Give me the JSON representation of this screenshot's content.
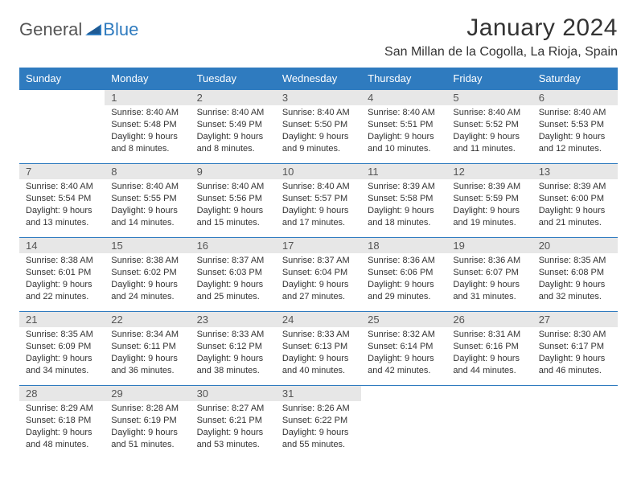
{
  "brand": {
    "part1": "General",
    "part2": "Blue"
  },
  "header": {
    "title": "January 2024",
    "location": "San Millan de la Cogolla, La Rioja, Spain"
  },
  "colors": {
    "header_bg": "#2f7bbf",
    "header_text": "#ffffff",
    "daynum_bg": "#e7e7e7",
    "daynum_text": "#555555",
    "row_border": "#2f7bbf",
    "body_text": "#333333",
    "brand_gray": "#555555",
    "brand_blue": "#2f7bbf"
  },
  "columns": [
    "Sunday",
    "Monday",
    "Tuesday",
    "Wednesday",
    "Thursday",
    "Friday",
    "Saturday"
  ],
  "weeks": [
    [
      {
        "empty": true
      },
      {
        "num": "1",
        "sunrise": "8:40 AM",
        "sunset": "5:48 PM",
        "daylight": "9 hours and 8 minutes."
      },
      {
        "num": "2",
        "sunrise": "8:40 AM",
        "sunset": "5:49 PM",
        "daylight": "9 hours and 8 minutes."
      },
      {
        "num": "3",
        "sunrise": "8:40 AM",
        "sunset": "5:50 PM",
        "daylight": "9 hours and 9 minutes."
      },
      {
        "num": "4",
        "sunrise": "8:40 AM",
        "sunset": "5:51 PM",
        "daylight": "9 hours and 10 minutes."
      },
      {
        "num": "5",
        "sunrise": "8:40 AM",
        "sunset": "5:52 PM",
        "daylight": "9 hours and 11 minutes."
      },
      {
        "num": "6",
        "sunrise": "8:40 AM",
        "sunset": "5:53 PM",
        "daylight": "9 hours and 12 minutes."
      }
    ],
    [
      {
        "num": "7",
        "sunrise": "8:40 AM",
        "sunset": "5:54 PM",
        "daylight": "9 hours and 13 minutes."
      },
      {
        "num": "8",
        "sunrise": "8:40 AM",
        "sunset": "5:55 PM",
        "daylight": "9 hours and 14 minutes."
      },
      {
        "num": "9",
        "sunrise": "8:40 AM",
        "sunset": "5:56 PM",
        "daylight": "9 hours and 15 minutes."
      },
      {
        "num": "10",
        "sunrise": "8:40 AM",
        "sunset": "5:57 PM",
        "daylight": "9 hours and 17 minutes."
      },
      {
        "num": "11",
        "sunrise": "8:39 AM",
        "sunset": "5:58 PM",
        "daylight": "9 hours and 18 minutes."
      },
      {
        "num": "12",
        "sunrise": "8:39 AM",
        "sunset": "5:59 PM",
        "daylight": "9 hours and 19 minutes."
      },
      {
        "num": "13",
        "sunrise": "8:39 AM",
        "sunset": "6:00 PM",
        "daylight": "9 hours and 21 minutes."
      }
    ],
    [
      {
        "num": "14",
        "sunrise": "8:38 AM",
        "sunset": "6:01 PM",
        "daylight": "9 hours and 22 minutes."
      },
      {
        "num": "15",
        "sunrise": "8:38 AM",
        "sunset": "6:02 PM",
        "daylight": "9 hours and 24 minutes."
      },
      {
        "num": "16",
        "sunrise": "8:37 AM",
        "sunset": "6:03 PM",
        "daylight": "9 hours and 25 minutes."
      },
      {
        "num": "17",
        "sunrise": "8:37 AM",
        "sunset": "6:04 PM",
        "daylight": "9 hours and 27 minutes."
      },
      {
        "num": "18",
        "sunrise": "8:36 AM",
        "sunset": "6:06 PM",
        "daylight": "9 hours and 29 minutes."
      },
      {
        "num": "19",
        "sunrise": "8:36 AM",
        "sunset": "6:07 PM",
        "daylight": "9 hours and 31 minutes."
      },
      {
        "num": "20",
        "sunrise": "8:35 AM",
        "sunset": "6:08 PM",
        "daylight": "9 hours and 32 minutes."
      }
    ],
    [
      {
        "num": "21",
        "sunrise": "8:35 AM",
        "sunset": "6:09 PM",
        "daylight": "9 hours and 34 minutes."
      },
      {
        "num": "22",
        "sunrise": "8:34 AM",
        "sunset": "6:11 PM",
        "daylight": "9 hours and 36 minutes."
      },
      {
        "num": "23",
        "sunrise": "8:33 AM",
        "sunset": "6:12 PM",
        "daylight": "9 hours and 38 minutes."
      },
      {
        "num": "24",
        "sunrise": "8:33 AM",
        "sunset": "6:13 PM",
        "daylight": "9 hours and 40 minutes."
      },
      {
        "num": "25",
        "sunrise": "8:32 AM",
        "sunset": "6:14 PM",
        "daylight": "9 hours and 42 minutes."
      },
      {
        "num": "26",
        "sunrise": "8:31 AM",
        "sunset": "6:16 PM",
        "daylight": "9 hours and 44 minutes."
      },
      {
        "num": "27",
        "sunrise": "8:30 AM",
        "sunset": "6:17 PM",
        "daylight": "9 hours and 46 minutes."
      }
    ],
    [
      {
        "num": "28",
        "sunrise": "8:29 AM",
        "sunset": "6:18 PM",
        "daylight": "9 hours and 48 minutes."
      },
      {
        "num": "29",
        "sunrise": "8:28 AM",
        "sunset": "6:19 PM",
        "daylight": "9 hours and 51 minutes."
      },
      {
        "num": "30",
        "sunrise": "8:27 AM",
        "sunset": "6:21 PM",
        "daylight": "9 hours and 53 minutes."
      },
      {
        "num": "31",
        "sunrise": "8:26 AM",
        "sunset": "6:22 PM",
        "daylight": "9 hours and 55 minutes."
      },
      {
        "empty": true
      },
      {
        "empty": true
      },
      {
        "empty": true
      }
    ]
  ]
}
